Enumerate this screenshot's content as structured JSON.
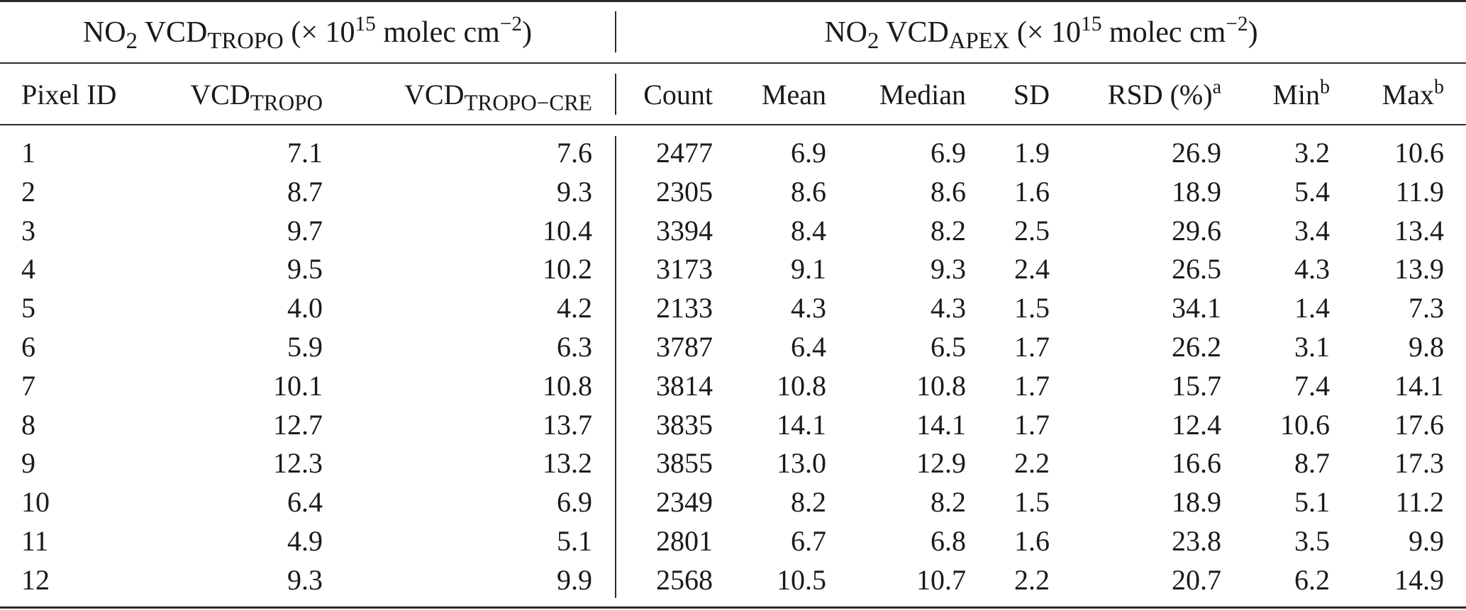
{
  "group_headers": {
    "tropo": {
      "prefix": "NO",
      "prefix_sub": "2",
      "vcd": " VCD",
      "vcd_sub": "TROPO",
      "unit_a": " (× 10",
      "unit_exp": "15",
      "unit_b": " molec cm",
      "unit_exp2": "−2",
      "unit_c": ")"
    },
    "apex": {
      "prefix": "NO",
      "prefix_sub": "2",
      "vcd": " VCD",
      "vcd_sub": "APEX",
      "unit_a": " (× 10",
      "unit_exp": "15",
      "unit_b": " molec cm",
      "unit_exp2": "−2",
      "unit_c": ")"
    }
  },
  "columns": {
    "pixel_id": "Pixel ID",
    "vcd_tropo": {
      "base": "VCD",
      "sub": "TROPO"
    },
    "vcd_tropo_cre": {
      "base": "VCD",
      "sub": "TROPO−CRE"
    },
    "count": "Count",
    "mean": "Mean",
    "median": "Median",
    "sd": "SD",
    "rsd": {
      "base": "RSD (%)",
      "sup": "a"
    },
    "min": {
      "base": "Min",
      "sup": "b"
    },
    "max": {
      "base": "Max",
      "sup": "b"
    }
  },
  "rows": [
    [
      "1",
      "7.1",
      "7.6",
      "2477",
      "6.9",
      "6.9",
      "1.9",
      "26.9",
      "3.2",
      "10.6"
    ],
    [
      "2",
      "8.7",
      "9.3",
      "2305",
      "8.6",
      "8.6",
      "1.6",
      "18.9",
      "5.4",
      "11.9"
    ],
    [
      "3",
      "9.7",
      "10.4",
      "3394",
      "8.4",
      "8.2",
      "2.5",
      "29.6",
      "3.4",
      "13.4"
    ],
    [
      "4",
      "9.5",
      "10.2",
      "3173",
      "9.1",
      "9.3",
      "2.4",
      "26.5",
      "4.3",
      "13.9"
    ],
    [
      "5",
      "4.0",
      "4.2",
      "2133",
      "4.3",
      "4.3",
      "1.5",
      "34.1",
      "1.4",
      "7.3"
    ],
    [
      "6",
      "5.9",
      "6.3",
      "3787",
      "6.4",
      "6.5",
      "1.7",
      "26.2",
      "3.1",
      "9.8"
    ],
    [
      "7",
      "10.1",
      "10.8",
      "3814",
      "10.8",
      "10.8",
      "1.7",
      "15.7",
      "7.4",
      "14.1"
    ],
    [
      "8",
      "12.7",
      "13.7",
      "3835",
      "14.1",
      "14.1",
      "1.7",
      "12.4",
      "10.6",
      "17.6"
    ],
    [
      "9",
      "12.3",
      "13.2",
      "3855",
      "13.0",
      "12.9",
      "2.2",
      "16.6",
      "8.7",
      "17.3"
    ],
    [
      "10",
      "6.4",
      "6.9",
      "2349",
      "8.2",
      "8.2",
      "1.5",
      "18.9",
      "5.1",
      "11.2"
    ],
    [
      "11",
      "4.9",
      "5.1",
      "2801",
      "6.7",
      "6.8",
      "1.6",
      "23.8",
      "3.5",
      "9.9"
    ],
    [
      "12",
      "9.3",
      "9.9",
      "2568",
      "10.5",
      "10.7",
      "2.2",
      "20.7",
      "6.2",
      "14.9"
    ]
  ]
}
